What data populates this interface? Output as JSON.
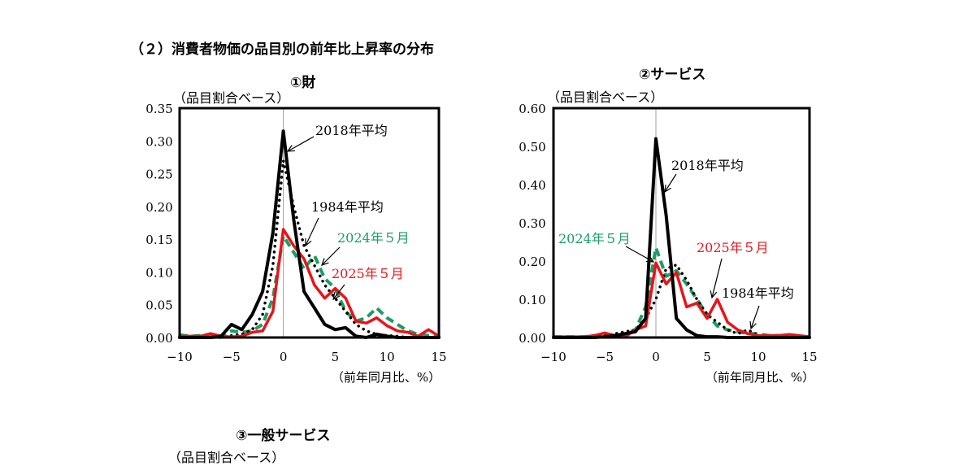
{
  "section_title": "（２）消費者物価の品目別の前年比上昇率の分布",
  "colors": {
    "y2018": "#000000",
    "y1984": "#000000",
    "y2024": "#1a9e63",
    "y2025": "#e8141a"
  },
  "chart_data": [
    {
      "type": "line",
      "title": "①財",
      "ylabel": "（品目割合ベース）",
      "xlabel": "（前年同月比、%）",
      "xlim": [
        -10,
        15
      ],
      "ylim": [
        0,
        0.35
      ],
      "xticks": [
        "−10",
        "−5",
        "0",
        "5",
        "10",
        "15"
      ],
      "yticks": [
        "0.00",
        "0.05",
        "0.10",
        "0.15",
        "0.20",
        "0.25",
        "0.30",
        "0.35"
      ],
      "x": [
        -10,
        -9,
        -8,
        -7,
        -6,
        -5,
        -4,
        -3,
        -2,
        -1,
        0,
        1,
        2,
        3,
        4,
        5,
        6,
        7,
        8,
        9,
        10,
        11,
        12,
        13,
        14,
        15
      ],
      "series": [
        {
          "name": "2018年平均",
          "style": "solid-thick",
          "color_key": "y2018",
          "values": [
            0,
            0,
            0,
            0,
            0.002,
            0.02,
            0.012,
            0.035,
            0.07,
            0.16,
            0.315,
            0.18,
            0.07,
            0.045,
            0.02,
            0.012,
            0.015,
            0.002,
            0,
            0.005,
            0.002,
            0,
            0,
            0,
            0,
            0
          ]
        },
        {
          "name": "1984年平均",
          "style": "dotted",
          "color_key": "y1984",
          "values": [
            0,
            0,
            0,
            0,
            0,
            0.003,
            0.005,
            0.012,
            0.035,
            0.11,
            0.27,
            0.2,
            0.14,
            0.11,
            0.08,
            0.06,
            0.04,
            0.02,
            0.01,
            0.005,
            0.003,
            0.002,
            0,
            0,
            0,
            0
          ]
        },
        {
          "name": "2024年５月",
          "style": "dashed",
          "color_key": "y2024",
          "values": [
            0.004,
            0.002,
            0.003,
            0.005,
            0.002,
            0.01,
            0.008,
            0.01,
            0.02,
            0.06,
            0.155,
            0.13,
            0.105,
            0.125,
            0.09,
            0.075,
            0.04,
            0.025,
            0.03,
            0.045,
            0.03,
            0.02,
            0.01,
            0.005,
            0.003,
            0.002
          ]
        },
        {
          "name": "2025年５月",
          "style": "solid",
          "color_key": "y2025",
          "values": [
            0.002,
            0.002,
            0.002,
            0.006,
            0.002,
            0.001,
            0.002,
            0.008,
            0.01,
            0.04,
            0.165,
            0.14,
            0.12,
            0.08,
            0.06,
            0.075,
            0.06,
            0.025,
            0.022,
            0.03,
            0.018,
            0.01,
            0.008,
            0.002,
            0.012,
            0.002
          ]
        }
      ],
      "annotations": [
        "2018年平均",
        "1984年平均",
        "2024年５月",
        "2025年５月"
      ]
    },
    {
      "type": "line",
      "title": "②サービス",
      "ylabel": "（品目割合ベース）",
      "xlabel": "（前年同月比、%）",
      "xlim": [
        -10,
        15
      ],
      "ylim": [
        0,
        0.6
      ],
      "xticks": [
        "−10",
        "−5",
        "0",
        "5",
        "10",
        "15"
      ],
      "yticks": [
        "0.00",
        "0.10",
        "0.20",
        "0.30",
        "0.40",
        "0.50",
        "0.60"
      ],
      "x": [
        -10,
        -9,
        -8,
        -7,
        -6,
        -5,
        -4,
        -3,
        -2,
        -1,
        0,
        1,
        2,
        3,
        4,
        5,
        6,
        7,
        8,
        9,
        10,
        11,
        12,
        13,
        14,
        15
      ],
      "series": [
        {
          "name": "2018年平均",
          "style": "solid-thick",
          "color_key": "y2018",
          "values": [
            0,
            0,
            0,
            0,
            0,
            0.002,
            0.005,
            0.01,
            0.015,
            0.05,
            0.52,
            0.32,
            0.05,
            0.02,
            0.005,
            0.002,
            0.002,
            0,
            0,
            0,
            0,
            0,
            0,
            0,
            0,
            0
          ]
        },
        {
          "name": "1984年平均",
          "style": "dotted",
          "color_key": "y1984",
          "values": [
            0,
            0,
            0,
            0,
            0,
            0.005,
            0.01,
            0.015,
            0.02,
            0.05,
            0.1,
            0.18,
            0.19,
            0.15,
            0.1,
            0.06,
            0.04,
            0.02,
            0.01,
            0.02,
            0.005,
            0.002,
            0.002,
            0,
            0,
            0
          ]
        },
        {
          "name": "2024年５月",
          "style": "dashed",
          "color_key": "y2024",
          "values": [
            0.002,
            0.002,
            0.002,
            0.002,
            0.005,
            0.008,
            0.005,
            0.01,
            0.02,
            0.08,
            0.235,
            0.16,
            0.175,
            0.14,
            0.1,
            0.06,
            0.03,
            0.02,
            0.015,
            0.01,
            0.01,
            0.005,
            0.005,
            0.003,
            0.002,
            0.002
          ]
        },
        {
          "name": "2025年５月",
          "style": "solid",
          "color_key": "y2025",
          "values": [
            0.002,
            0.002,
            0.002,
            0.002,
            0.005,
            0.012,
            0.005,
            0.002,
            0.02,
            0.03,
            0.195,
            0.14,
            0.17,
            0.08,
            0.09,
            0.05,
            0.1,
            0.04,
            0.02,
            0.01,
            0.005,
            0.005,
            0.005,
            0.008,
            0.005,
            0.002
          ]
        }
      ],
      "annotations": [
        "2018年平均",
        "2024年５月",
        "2025年５月",
        "1984年平均"
      ]
    }
  ],
  "third_chart": {
    "title": "③一般サービス",
    "ylabel": "（品目割合ベース）"
  }
}
